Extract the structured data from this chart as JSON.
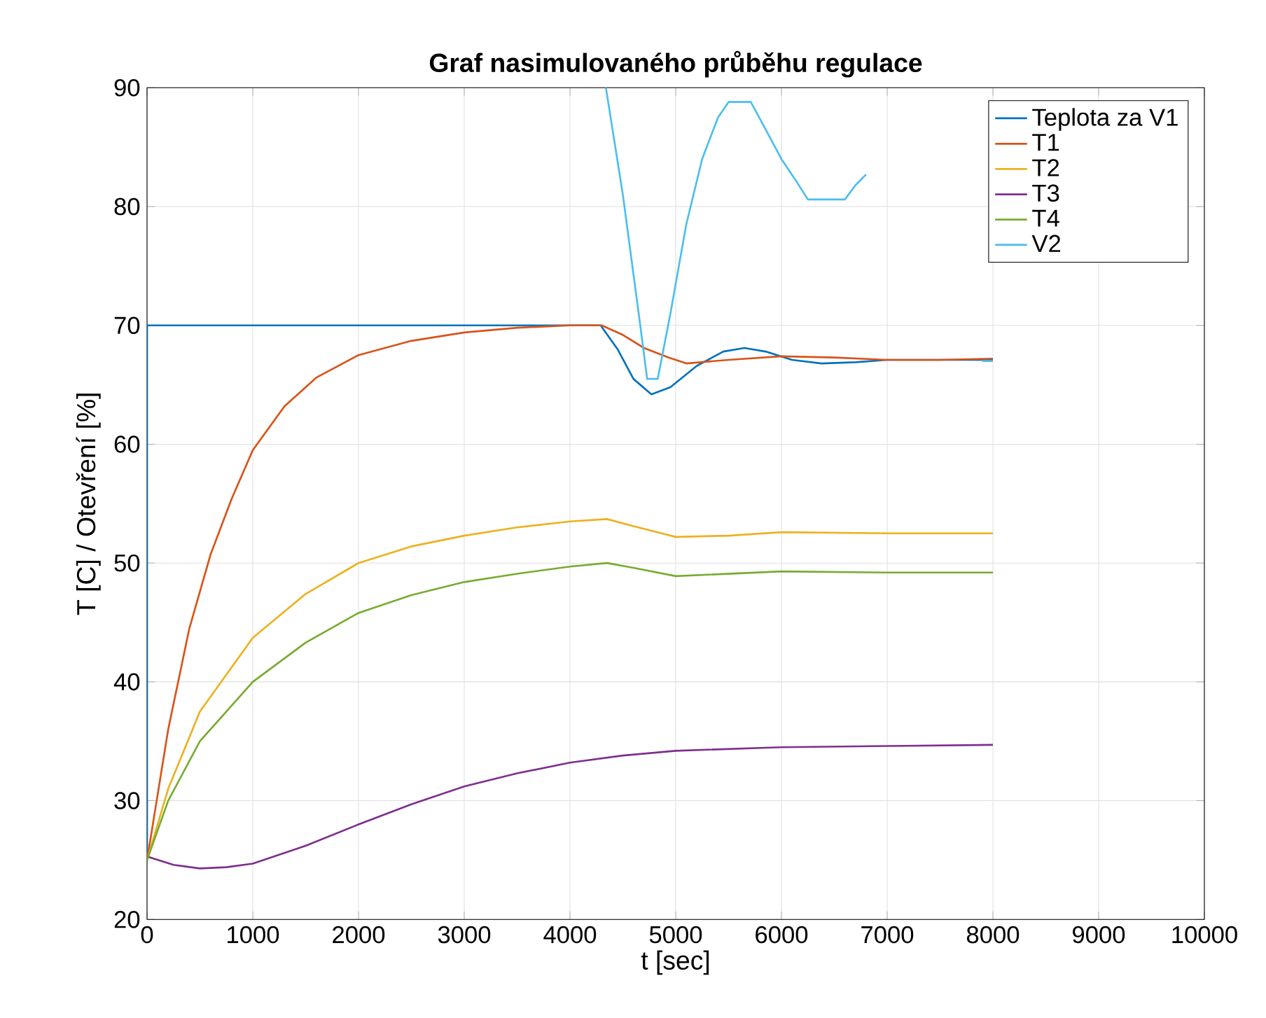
{
  "chart_data": {
    "type": "line",
    "title": "Graf nasimulovaného průběhu regulace",
    "xlabel": "t [sec]",
    "ylabel": "T [C] / Otevření [%]",
    "xlim": [
      0,
      10000
    ],
    "ylim": [
      20,
      90
    ],
    "xticks": [
      0,
      1000,
      2000,
      3000,
      4000,
      5000,
      6000,
      7000,
      8000,
      9000,
      10000
    ],
    "yticks": [
      20,
      30,
      40,
      50,
      60,
      70,
      80,
      90
    ],
    "grid": true,
    "legend": "top right",
    "series": [
      {
        "name": "Teplota za V1",
        "color": "#0072bd",
        "x": [
          0,
          0,
          1000,
          2000,
          3000,
          4290,
          4450,
          4600,
          4770,
          4950,
          5200,
          5450,
          5650,
          5850,
          6100,
          6380,
          6700,
          7000,
          8000
        ],
        "values": [
          25,
          70,
          70,
          70,
          70,
          70,
          68,
          65.5,
          64.2,
          64.8,
          66.6,
          67.8,
          68.1,
          67.8,
          67.1,
          66.8,
          66.9,
          67.1,
          67.1
        ]
      },
      {
        "name": "T1",
        "color": "#d95319",
        "x": [
          0,
          200,
          400,
          600,
          800,
          1000,
          1300,
          1600,
          2000,
          2500,
          3000,
          3500,
          4000,
          4300,
          4500,
          4700,
          4930,
          5100,
          5500,
          6000,
          6500,
          7000,
          7500,
          8000
        ],
        "values": [
          25,
          36,
          44.5,
          50.7,
          55.4,
          59.5,
          63.2,
          65.6,
          67.5,
          68.7,
          69.4,
          69.8,
          70,
          70,
          69.2,
          68.1,
          67.3,
          66.8,
          67.1,
          67.4,
          67.3,
          67.1,
          67.1,
          67.2
        ]
      },
      {
        "name": "T2",
        "color": "#edb120",
        "x": [
          0,
          200,
          500,
          1000,
          1500,
          2000,
          2500,
          3000,
          3500,
          4000,
          4350,
          4600,
          5000,
          5500,
          6000,
          7000,
          8000
        ],
        "values": [
          25,
          31,
          37.5,
          43.7,
          47.4,
          50,
          51.4,
          52.3,
          53,
          53.5,
          53.7,
          53.1,
          52.2,
          52.3,
          52.6,
          52.5,
          52.5
        ]
      },
      {
        "name": "T3",
        "color": "#7e2f8e",
        "x": [
          0,
          250,
          500,
          750,
          1000,
          1500,
          2000,
          2500,
          3000,
          3500,
          4000,
          4500,
          5000,
          6000,
          7000,
          8000
        ],
        "values": [
          25.3,
          24.6,
          24.3,
          24.4,
          24.7,
          26.2,
          28,
          29.7,
          31.2,
          32.3,
          33.2,
          33.8,
          34.2,
          34.5,
          34.6,
          34.7
        ]
      },
      {
        "name": "T4",
        "color": "#77ac30",
        "x": [
          0,
          200,
          500,
          1000,
          1500,
          2000,
          2500,
          3000,
          3500,
          4000,
          4350,
          4600,
          5000,
          5500,
          6000,
          7000,
          8000
        ],
        "values": [
          25,
          30,
          35,
          40,
          43.3,
          45.8,
          47.3,
          48.4,
          49.1,
          49.7,
          50,
          49.6,
          48.9,
          49.1,
          49.3,
          49.2,
          49.2
        ]
      },
      {
        "name": "V2",
        "color": "#4dbeee",
        "x": [
          4340,
          4500,
          4650,
          4730,
          4830,
          4950,
          5100,
          5250,
          5400,
          5500,
          5710,
          5850,
          6000,
          6150,
          6250,
          6600,
          6700,
          6800,
          6900,
          7900,
          8000
        ],
        "values": [
          90,
          81,
          71,
          65.5,
          65.5,
          71,
          78.5,
          84,
          87.5,
          88.8,
          88.8,
          86.5,
          84,
          82,
          80.6,
          80.6,
          81.8,
          82.7,
          null,
          67,
          67
        ]
      }
    ]
  }
}
